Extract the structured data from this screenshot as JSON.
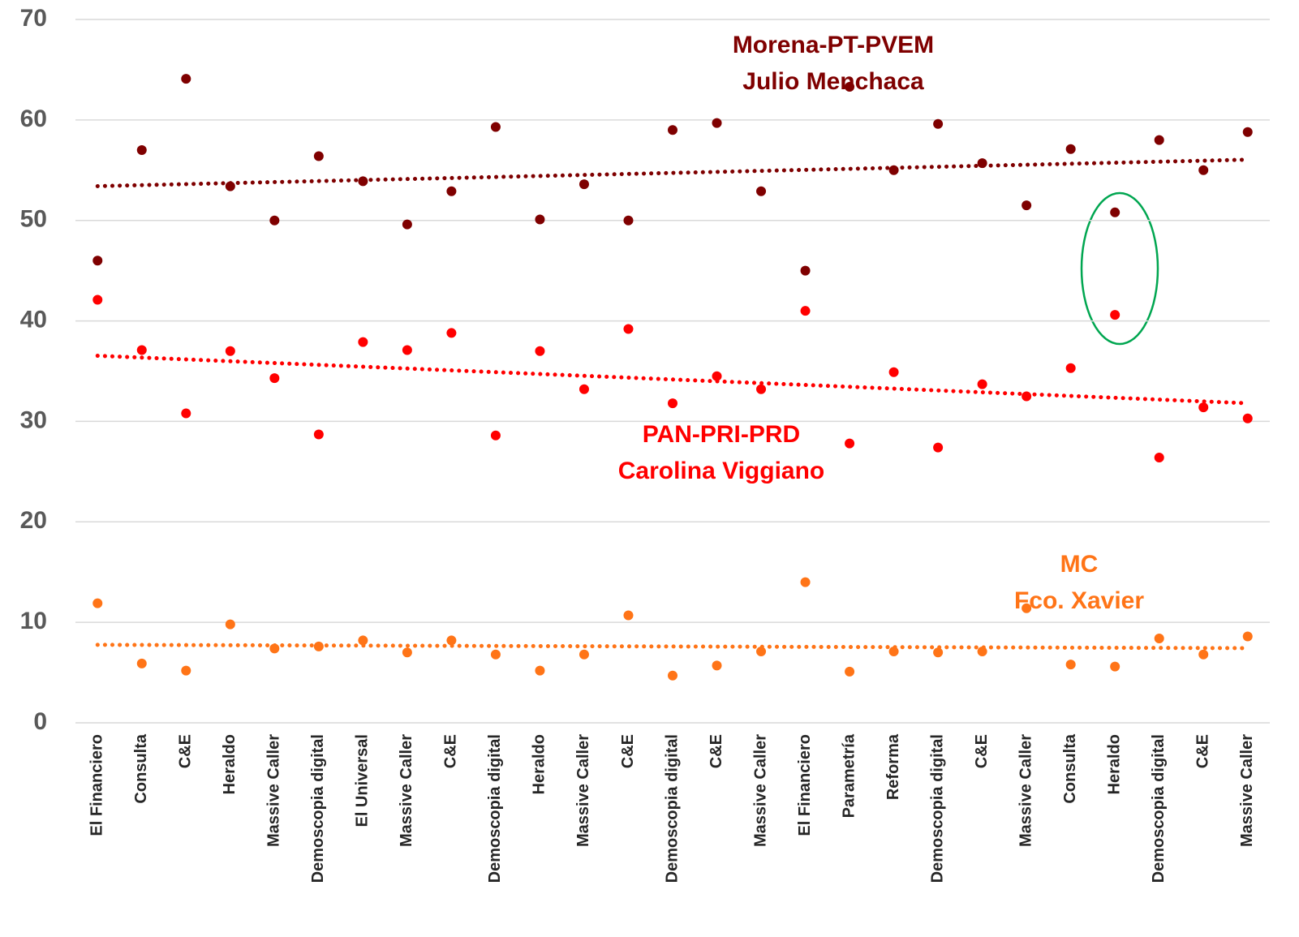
{
  "chart_data": {
    "type": "scatter",
    "categories": [
      "El Financiero",
      "Consulta",
      "C&E",
      "Heraldo",
      "Massive Caller",
      "Demoscopia digital",
      "El Universal",
      "Massive Caller",
      "C&E",
      "Demoscopia digital",
      "Heraldo",
      "Massive Caller",
      "C&E",
      "Demoscopia digital",
      "C&E",
      "Massive Caller",
      "El Financiero",
      "Parametría",
      "Reforma",
      "Demoscopia digital",
      "C&E",
      "Massive Caller",
      "Consulta",
      "Heraldo",
      "Demoscopia digital",
      "C&E",
      "Massive Caller"
    ],
    "series": [
      {
        "name": "Morena-PT-PVEM",
        "candidate": "Julio Menchaca",
        "color": "#7f0000",
        "values": [
          46.0,
          57.0,
          64.1,
          53.4,
          50.0,
          56.4,
          53.9,
          49.6,
          52.9,
          59.3,
          50.1,
          53.6,
          50.0,
          59.0,
          59.7,
          52.9,
          45.0,
          63.3,
          55.0,
          59.6,
          55.7,
          51.5,
          57.1,
          50.8,
          58.0,
          55.0,
          58.8
        ]
      },
      {
        "name": "PAN-PRI-PRD",
        "candidate": "Carolina Viggiano",
        "color": "#ff0000",
        "values": [
          42.1,
          37.1,
          30.8,
          37.0,
          34.3,
          28.7,
          37.9,
          37.1,
          38.8,
          28.6,
          37.0,
          33.2,
          39.2,
          31.8,
          34.5,
          33.2,
          41.0,
          27.8,
          34.9,
          27.4,
          33.7,
          32.5,
          35.3,
          40.6,
          26.4,
          31.4,
          30.3
        ]
      },
      {
        "name": "MC",
        "candidate": "Fco. Xavier",
        "color": "#ff7417",
        "values": [
          11.9,
          5.9,
          5.2,
          9.8,
          7.4,
          7.6,
          8.2,
          7.0,
          8.2,
          6.8,
          5.2,
          6.8,
          10.7,
          4.7,
          5.7,
          7.1,
          14.0,
          5.1,
          7.1,
          7.0,
          7.1,
          11.4,
          5.8,
          5.6,
          8.4,
          6.8,
          8.6
        ]
      }
    ],
    "ylim": [
      0,
      70
    ],
    "yticks": [
      0,
      10,
      20,
      30,
      40,
      50,
      60,
      70
    ],
    "grid": true,
    "trendline": "linear"
  }
}
